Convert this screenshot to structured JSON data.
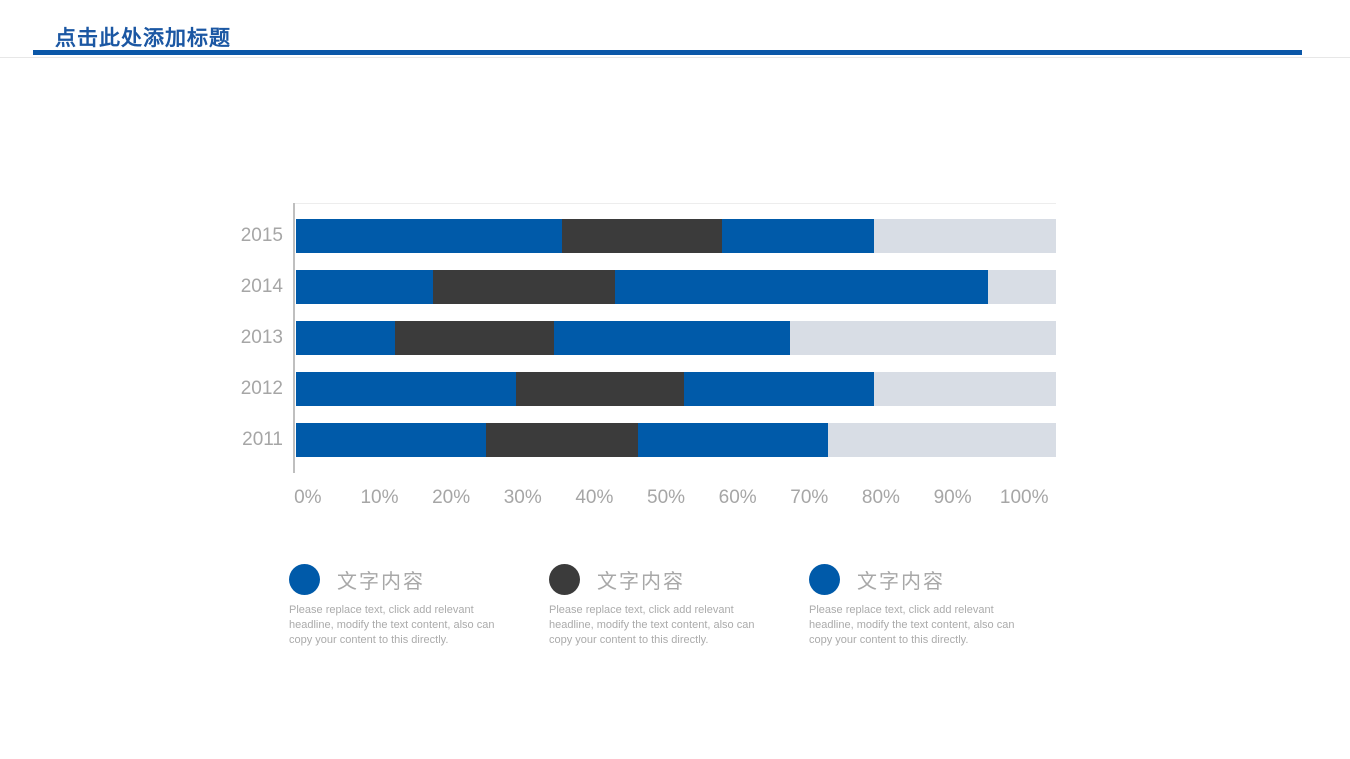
{
  "header": {
    "title": "点击此处添加标题"
  },
  "theme": {
    "title_blue": "#1B57A3",
    "underline_blue": "#0B57A8",
    "bar_blue": "#005AA9",
    "bar_dark": "#3B3B3B",
    "track_gray": "#D8DDE5",
    "axis_gray": "#BFBFBF",
    "label_gray": "#A6A6A6"
  },
  "chart_data": {
    "type": "bar",
    "orientation": "horizontal",
    "stacked": true,
    "title": "",
    "xlabel": "",
    "ylabel": "",
    "xlim": [
      0,
      100
    ],
    "unit": "%",
    "grid": false,
    "categories": [
      "2015",
      "2014",
      "2013",
      "2012",
      "2011"
    ],
    "series": [
      {
        "name": "segment-1-blue",
        "color": "#005AA9",
        "values": [
          35,
          18,
          13,
          29,
          25
        ]
      },
      {
        "name": "segment-2-dark",
        "color": "#3B3B3B",
        "values": [
          21,
          24,
          21,
          22,
          20
        ]
      },
      {
        "name": "segment-3-blue",
        "color": "#005AA9",
        "values": [
          20,
          49,
          31,
          25,
          25
        ]
      },
      {
        "name": "remainder-track",
        "color": "#D8DDE5",
        "values": [
          24,
          9,
          35,
          24,
          30
        ]
      }
    ],
    "x_ticks": [
      "0%",
      "10%",
      "20%",
      "30%",
      "40%",
      "50%",
      "60%",
      "70%",
      "80%",
      "90%",
      "100%"
    ]
  },
  "legend": {
    "items": [
      {
        "title": "文字内容",
        "color": "#005AA9",
        "body": "Please replace text, click add relevant headline, modify the text content, also can copy your content to this directly."
      },
      {
        "title": "文字内容",
        "color": "#3B3B3B",
        "body": "Please replace text, click add relevant headline, modify the text content, also can copy your content to this directly."
      },
      {
        "title": "文字内容",
        "color": "#005AA9",
        "body": "Please replace text, click add relevant headline, modify the text content, also can copy your content to this directly."
      }
    ]
  }
}
